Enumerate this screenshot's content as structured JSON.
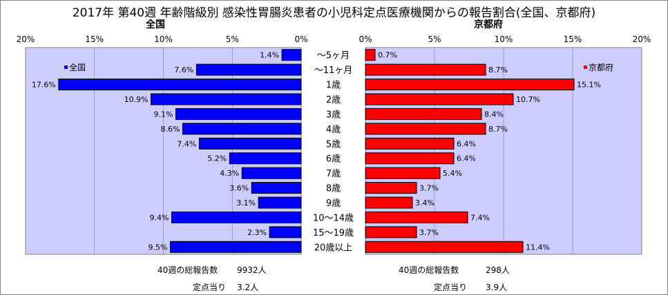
{
  "title": "2017年 第40週 年齢階級別 感染性胃腸炎患者の小児科定点医療機関からの報告割合(全国、京都府)",
  "chart_data": {
    "type": "bar",
    "orientation": "horizontal-butterfly",
    "categories": [
      "～5ヶ月",
      "～11ヶ月",
      "1歳",
      "2歳",
      "3歳",
      "4歳",
      "5歳",
      "6歳",
      "7歳",
      "8歳",
      "9歳",
      "10～14歳",
      "15～19歳",
      "20歳以上"
    ],
    "x_ticks": [
      "20%",
      "15%",
      "10%",
      "5%",
      "0%"
    ],
    "x_ticks_right": [
      "0%",
      "5%",
      "10%",
      "15%",
      "20%"
    ],
    "xlim": [
      0,
      20
    ],
    "grid": true,
    "series": [
      {
        "name": "全国",
        "panel_title": "全国",
        "legend_label": "全国",
        "legend_position": "top-left",
        "color": "#0000ff",
        "direction": "left",
        "values": [
          1.4,
          7.6,
          17.6,
          10.9,
          9.1,
          8.6,
          7.4,
          5.2,
          4.3,
          3.6,
          3.1,
          9.4,
          2.3,
          9.5
        ],
        "labels": [
          "1.4%",
          "7.6%",
          "17.6%",
          "10.9%",
          "9.1%",
          "8.6%",
          "7.4%",
          "5.2%",
          "4.3%",
          "3.6%",
          "3.1%",
          "9.4%",
          "2.3%",
          "9.5%"
        ]
      },
      {
        "name": "京都府",
        "panel_title": "京都府",
        "legend_label": "京都府",
        "legend_position": "top-right",
        "color": "#ff0000",
        "direction": "right",
        "values": [
          0.7,
          8.7,
          15.1,
          10.7,
          8.4,
          8.7,
          6.4,
          6.4,
          5.4,
          3.7,
          3.4,
          7.4,
          3.7,
          11.4
        ],
        "labels": [
          "0.7%",
          "8.7%",
          "15.1%",
          "10.7%",
          "8.4%",
          "8.7%",
          "6.4%",
          "6.4%",
          "5.4%",
          "3.7%",
          "3.4%",
          "7.4%",
          "3.7%",
          "11.4%"
        ]
      }
    ]
  },
  "stats": {
    "national": {
      "total_label": "40週の総報告数",
      "total_value": "9932人",
      "per_label": "定点当り",
      "per_value": "3.2人"
    },
    "kyoto": {
      "total_label": "40週の総報告数",
      "total_value": "298人",
      "per_label": "定点当り",
      "per_value": "3.9人"
    }
  },
  "colors": {
    "plot_bg": "#ccccff",
    "national_bar": "#0000ff",
    "kyoto_bar": "#ff0000",
    "grid": "#808080"
  }
}
